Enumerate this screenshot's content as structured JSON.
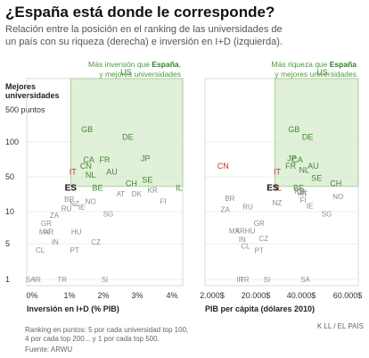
{
  "title": "¿España está donde le corresponde?",
  "subtitle_lines": [
    "Relación entre la posición en el ranking de las universidades de",
    "un país con su riqueza (derecha) e inversión en I+D (izquierda)."
  ],
  "y_axis_title": [
    "Mejores",
    "universidades"
  ],
  "y_top_label": "500 puntos",
  "notes": [
    "Ranking en puntos: 5 por cada universidad top 100,",
    "4 por cada top 200... y 1 por cada top 500."
  ],
  "source": "Fuente: ARWU",
  "credit": "K LL / EL PAÍS",
  "colors": {
    "highlight_box": "#d7ebcc",
    "highlight_stroke": "#9cc98a",
    "green_label": "#3f8a30",
    "red_label": "#c0392b",
    "gray_label": "#8d8d8d"
  },
  "chart_data": [
    {
      "type": "scatter",
      "xlabel": "Inversión en I+D (% PIB)",
      "x_ticks": [
        "0%",
        "1%",
        "2%",
        "3%",
        "4%"
      ],
      "xlim": [
        0,
        4.4
      ],
      "ylim": [
        1,
        500
      ],
      "y_scale": "log",
      "y_ticks": [
        "1",
        "5",
        "10",
        "50",
        "100"
      ],
      "annotation_parts": [
        "Más inversión que ",
        "España",
        ",",
        "y mejores universidades"
      ],
      "highlight": {
        "x": [
          1.24,
          4.4
        ],
        "y": [
          32,
          500
        ]
      },
      "points": [
        {
          "label": "US",
          "x": 2.8,
          "y": 400,
          "color": "green"
        },
        {
          "label": "GB",
          "x": 1.7,
          "y": 128,
          "color": "green"
        },
        {
          "label": "DE",
          "x": 2.85,
          "y": 110,
          "color": "green"
        },
        {
          "label": "CA",
          "x": 1.75,
          "y": 70,
          "color": "green"
        },
        {
          "label": "FR",
          "x": 2.2,
          "y": 70,
          "color": "green"
        },
        {
          "label": "JP",
          "x": 3.35,
          "y": 72,
          "color": "green"
        },
        {
          "label": "CN",
          "x": 1.67,
          "y": 62,
          "color": "green"
        },
        {
          "label": "AU",
          "x": 2.4,
          "y": 55,
          "color": "green"
        },
        {
          "label": "NL",
          "x": 1.8,
          "y": 52,
          "color": "green"
        },
        {
          "label": "SE",
          "x": 3.4,
          "y": 43,
          "color": "green"
        },
        {
          "label": "CH",
          "x": 2.95,
          "y": 37,
          "color": "green"
        },
        {
          "label": "BE",
          "x": 2.0,
          "y": 30,
          "color": "green"
        },
        {
          "label": "IL",
          "x": 4.3,
          "y": 30,
          "color": "green"
        },
        {
          "label": "IT",
          "x": 1.3,
          "y": 55,
          "color": "red"
        },
        {
          "label": "ES",
          "x": 1.24,
          "y": 30,
          "color": "black"
        },
        {
          "label": "KR",
          "x": 3.55,
          "y": 27,
          "color": "gray"
        },
        {
          "label": "AT",
          "x": 2.65,
          "y": 23,
          "color": "gray"
        },
        {
          "label": "DK",
          "x": 3.1,
          "y": 23,
          "color": "gray"
        },
        {
          "label": "FI",
          "x": 3.85,
          "y": 16,
          "color": "gray"
        },
        {
          "label": "BR",
          "x": 1.2,
          "y": 18,
          "color": "gray"
        },
        {
          "label": "NZ",
          "x": 1.35,
          "y": 14.5,
          "color": "gray"
        },
        {
          "label": "RU",
          "x": 1.12,
          "y": 11.5,
          "color": "gray"
        },
        {
          "label": "IE",
          "x": 1.55,
          "y": 12.3,
          "color": "gray"
        },
        {
          "label": "NO",
          "x": 1.8,
          "y": 16,
          "color": "gray"
        },
        {
          "label": "SG",
          "x": 2.3,
          "y": 9.5,
          "color": "gray"
        },
        {
          "label": "ZA",
          "x": 0.78,
          "y": 9.3,
          "color": "gray"
        },
        {
          "label": "GR",
          "x": 0.55,
          "y": 7.8,
          "color": "gray"
        },
        {
          "label": "MX",
          "x": 0.5,
          "y": 6.5,
          "color": "gray"
        },
        {
          "label": "AR",
          "x": 0.62,
          "y": 6.5,
          "color": "gray"
        },
        {
          "label": "HU",
          "x": 1.4,
          "y": 6.5,
          "color": "gray"
        },
        {
          "label": "IN",
          "x": 0.8,
          "y": 5.2,
          "color": "gray"
        },
        {
          "label": "CZ",
          "x": 1.95,
          "y": 5.2,
          "color": "gray"
        },
        {
          "label": "CL",
          "x": 0.38,
          "y": 3.8,
          "color": "gray"
        },
        {
          "label": "PT",
          "x": 1.35,
          "y": 3.8,
          "color": "gray"
        },
        {
          "label": "SA",
          "x": 0.1,
          "y": 1.0,
          "color": "gray"
        },
        {
          "label": "IR",
          "x": 0.3,
          "y": 1.0,
          "color": "gray"
        },
        {
          "label": "TR",
          "x": 1.0,
          "y": 1.0,
          "color": "gray"
        },
        {
          "label": "SI",
          "x": 2.2,
          "y": 1.0,
          "color": "gray"
        }
      ]
    },
    {
      "type": "scatter",
      "xlabel": "PIB per cápita (dólares 2010)",
      "x_ticks": [
        "2.000$",
        "20.000$",
        "40.000$",
        "60.000$"
      ],
      "xlim": [
        0,
        68000
      ],
      "ylim": [
        1,
        500
      ],
      "y_scale": "log",
      "annotation_parts": [
        "Más riqueza que ",
        "España",
        "y mejores universidades"
      ],
      "highlight": {
        "x": [
          31000,
          68000
        ],
        "y": [
          32,
          500
        ]
      },
      "points": [
        {
          "label": "US",
          "x": 52000,
          "y": 400,
          "color": "green"
        },
        {
          "label": "GB",
          "x": 39500,
          "y": 128,
          "color": "green"
        },
        {
          "label": "DE",
          "x": 45500,
          "y": 110,
          "color": "green"
        },
        {
          "label": "JP",
          "x": 38500,
          "y": 72,
          "color": "green"
        },
        {
          "label": "CA",
          "x": 41000,
          "y": 70,
          "color": "green"
        },
        {
          "label": "FR",
          "x": 38000,
          "y": 62,
          "color": "green"
        },
        {
          "label": "NL",
          "x": 44000,
          "y": 57,
          "color": "green"
        },
        {
          "label": "AU",
          "x": 48000,
          "y": 62,
          "color": "green"
        },
        {
          "label": "SE",
          "x": 49500,
          "y": 47,
          "color": "green"
        },
        {
          "label": "CH",
          "x": 58000,
          "y": 37,
          "color": "green"
        },
        {
          "label": "BE",
          "x": 41500,
          "y": 30,
          "color": "green"
        },
        {
          "label": "IL",
          "x": 32500,
          "y": 30,
          "color": "red"
        },
        {
          "label": "CN",
          "x": 8000,
          "y": 62,
          "color": "red"
        },
        {
          "label": "IT",
          "x": 32000,
          "y": 55,
          "color": "red"
        },
        {
          "label": "ES",
          "x": 30000,
          "y": 30,
          "color": "black"
        },
        {
          "label": "KR",
          "x": 42000,
          "y": 26,
          "color": "gray"
        },
        {
          "label": "DK",
          "x": 43000,
          "y": 25,
          "color": "gray"
        },
        {
          "label": "AT",
          "x": 43500,
          "y": 23,
          "color": "gray"
        },
        {
          "label": "NO",
          "x": 59000,
          "y": 20,
          "color": "gray"
        },
        {
          "label": "FI",
          "x": 43500,
          "y": 17,
          "color": "gray"
        },
        {
          "label": "BR",
          "x": 11000,
          "y": 18.5,
          "color": "gray"
        },
        {
          "label": "NZ",
          "x": 32000,
          "y": 15,
          "color": "gray"
        },
        {
          "label": "IE",
          "x": 46500,
          "y": 13,
          "color": "gray"
        },
        {
          "label": "RU",
          "x": 19000,
          "y": 12.5,
          "color": "gray"
        },
        {
          "label": "ZA",
          "x": 9000,
          "y": 11,
          "color": "gray"
        },
        {
          "label": "SG",
          "x": 54000,
          "y": 9.5,
          "color": "gray"
        },
        {
          "label": "GR",
          "x": 24000,
          "y": 7.8,
          "color": "gray"
        },
        {
          "label": "MX",
          "x": 13000,
          "y": 6.6,
          "color": "gray"
        },
        {
          "label": "AR",
          "x": 15500,
          "y": 6.6,
          "color": "gray"
        },
        {
          "label": "HU",
          "x": 20000,
          "y": 6.6,
          "color": "gray"
        },
        {
          "label": "IN",
          "x": 16500,
          "y": 5.5,
          "color": "gray"
        },
        {
          "label": "CZ",
          "x": 26000,
          "y": 5.6,
          "color": "gray"
        },
        {
          "label": "CL",
          "x": 18000,
          "y": 4.5,
          "color": "gray"
        },
        {
          "label": "PT",
          "x": 24000,
          "y": 3.7,
          "color": "gray"
        },
        {
          "label": "IR",
          "x": 15500,
          "y": 1.0,
          "color": "gray"
        },
        {
          "label": "TR",
          "x": 17500,
          "y": 1.0,
          "color": "gray"
        },
        {
          "label": "SA",
          "x": 44500,
          "y": 1.0,
          "color": "gray"
        },
        {
          "label": "SI",
          "x": 27500,
          "y": 1.0,
          "color": "gray"
        }
      ]
    }
  ]
}
